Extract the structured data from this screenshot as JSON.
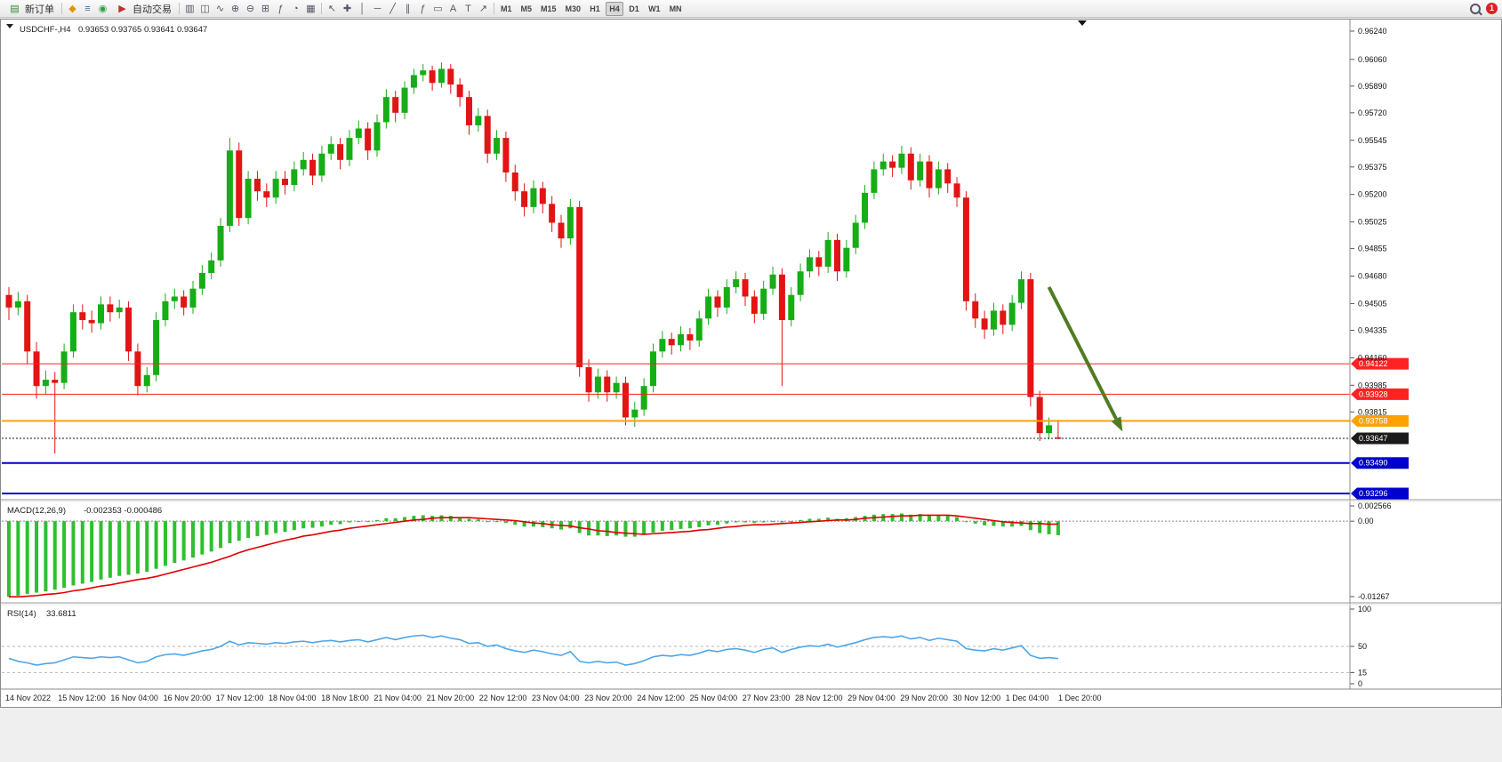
{
  "toolbar": {
    "new_order_label": "新订单",
    "autotrade_label": "自动交易",
    "left_icons": [
      {
        "name": "alert-icon",
        "glyph": "◆",
        "color": "#d99a00"
      },
      {
        "name": "news-icon",
        "glyph": "≡",
        "color": "#3a6ea8"
      },
      {
        "name": "community-icon",
        "glyph": "◉",
        "color": "#2f9e44"
      }
    ],
    "chart_icons": [
      {
        "name": "bar-chart-icon",
        "glyph": "▥"
      },
      {
        "name": "candlestick-icon",
        "glyph": "◫"
      },
      {
        "name": "line-chart-icon",
        "glyph": "∿"
      },
      {
        "name": "zoom-in-icon",
        "glyph": "⊕"
      },
      {
        "name": "zoom-out-icon",
        "glyph": "⊖"
      },
      {
        "name": "tile-windows-icon",
        "glyph": "⊞"
      },
      {
        "name": "indicators-icon",
        "glyph": "ƒ"
      },
      {
        "name": "timeframe-menu-icon",
        "glyph": "◔"
      },
      {
        "name": "templates-icon",
        "glyph": "▦"
      }
    ],
    "tool_icons": [
      {
        "name": "cursor-icon",
        "glyph": "↖"
      },
      {
        "name": "crosshair-icon",
        "glyph": "✚"
      },
      {
        "name": "vertical-line-icon",
        "glyph": "│"
      },
      {
        "name": "horizontal-line-icon",
        "glyph": "─"
      },
      {
        "name": "trendline-icon",
        "glyph": "╱"
      },
      {
        "name": "channel-icon",
        "glyph": "∥"
      },
      {
        "name": "fibonacci-icon",
        "glyph": "ƒ"
      },
      {
        "name": "shapes-icon",
        "glyph": "▭"
      },
      {
        "name": "text-icon",
        "glyph": "A"
      },
      {
        "name": "label-icon",
        "glyph": "T"
      },
      {
        "name": "arrows-icon",
        "glyph": "↗"
      }
    ],
    "timeframes": [
      "M1",
      "M5",
      "M15",
      "M30",
      "H1",
      "H4",
      "D1",
      "W1",
      "MN"
    ],
    "active_timeframe": "H4",
    "notification_badge": "1"
  },
  "chart": {
    "title": "USDCHF-,H4",
    "ohlc_text": "0.93653 0.93765 0.93641 0.93647",
    "colors": {
      "up": "#16ad16",
      "down": "#e21414",
      "macd_bar": "#2fbf2f",
      "macd_signal": "#e00000",
      "rsi_line": "#4da6e8",
      "axis_line": "#808080"
    },
    "price_ticks": [
      "0.96240",
      "0.96060",
      "0.95890",
      "0.95720",
      "0.95545",
      "0.95375",
      "0.95200",
      "0.95025",
      "0.94855",
      "0.94680",
      "0.94505",
      "0.94335",
      "0.94160",
      "0.93985",
      "0.93815"
    ],
    "time_labels": [
      "14 Nov 2022",
      "15 Nov 12:00",
      "16 Nov 04:00",
      "16 Nov 20:00",
      "17 Nov 12:00",
      "18 Nov 04:00",
      "18 Nov 18:00",
      "21 Nov 04:00",
      "21 Nov 20:00",
      "22 Nov 12:00",
      "23 Nov 04:00",
      "23 Nov 20:00",
      "24 Nov 12:00",
      "25 Nov 04:00",
      "27 Nov 23:00",
      "28 Nov 12:00",
      "29 Nov 04:00",
      "29 Nov 20:00",
      "30 Nov 12:00",
      "1 Dec 04:00",
      "1 Dec 20:00"
    ]
  },
  "macd_panel": {
    "title": "MACD(12,26,9)",
    "values_text": "-0.002353 -0.000486",
    "axis_labels": [
      {
        "text": "0.002566",
        "value": 0.002566
      },
      {
        "text": "0.00",
        "value": 0
      },
      {
        "text": "-0.01267",
        "value": -0.01267
      }
    ]
  },
  "rsi_panel": {
    "title": "RSI(14)",
    "value_text": "33.6811",
    "axis_labels": [
      {
        "text": "100",
        "value": 100
      },
      {
        "text": "50",
        "value": 50
      },
      {
        "text": "15",
        "value": 15
      },
      {
        "text": "0",
        "value": 0
      }
    ],
    "level_lines": [
      50,
      15
    ]
  },
  "chart_data": {
    "type": "candlestick",
    "symbol": "USDCHF-",
    "timeframe": "H4",
    "last_ohlc": {
      "open": 0.93653,
      "high": 0.93765,
      "low": 0.93641,
      "close": 0.93647
    },
    "y_axis": {
      "max": 0.9624,
      "min": 0.93296
    },
    "candles": [
      [
        0.9456,
        0.9461,
        0.944,
        0.9448
      ],
      [
        0.9448,
        0.9458,
        0.9443,
        0.9452
      ],
      [
        0.9452,
        0.9456,
        0.9412,
        0.942
      ],
      [
        0.942,
        0.9426,
        0.939,
        0.9398
      ],
      [
        0.9398,
        0.9408,
        0.9393,
        0.9402
      ],
      [
        0.9402,
        0.9407,
        0.9355,
        0.94
      ],
      [
        0.94,
        0.9425,
        0.9396,
        0.942
      ],
      [
        0.942,
        0.945,
        0.9416,
        0.9445
      ],
      [
        0.9445,
        0.945,
        0.9434,
        0.944
      ],
      [
        0.944,
        0.9446,
        0.9432,
        0.9438
      ],
      [
        0.9438,
        0.9455,
        0.9434,
        0.945
      ],
      [
        0.945,
        0.9455,
        0.9439,
        0.9445
      ],
      [
        0.9445,
        0.9453,
        0.9441,
        0.9448
      ],
      [
        0.9448,
        0.9452,
        0.9414,
        0.942
      ],
      [
        0.942,
        0.9425,
        0.9392,
        0.9398
      ],
      [
        0.9398,
        0.941,
        0.9394,
        0.9405
      ],
      [
        0.9405,
        0.9445,
        0.9401,
        0.944
      ],
      [
        0.944,
        0.9457,
        0.9436,
        0.9452
      ],
      [
        0.9452,
        0.946,
        0.9447,
        0.9455
      ],
      [
        0.9455,
        0.9459,
        0.9443,
        0.9448
      ],
      [
        0.9448,
        0.9465,
        0.9444,
        0.946
      ],
      [
        0.946,
        0.9475,
        0.9456,
        0.947
      ],
      [
        0.947,
        0.9483,
        0.9466,
        0.9478
      ],
      [
        0.9478,
        0.9505,
        0.9474,
        0.95
      ],
      [
        0.95,
        0.9556,
        0.9496,
        0.9548
      ],
      [
        0.9548,
        0.9553,
        0.95,
        0.9505
      ],
      [
        0.9505,
        0.9535,
        0.9501,
        0.953
      ],
      [
        0.953,
        0.9535,
        0.9516,
        0.9522
      ],
      [
        0.9522,
        0.9527,
        0.9512,
        0.9518
      ],
      [
        0.9518,
        0.9535,
        0.9514,
        0.953
      ],
      [
        0.953,
        0.9535,
        0.952,
        0.9526
      ],
      [
        0.9526,
        0.9541,
        0.9522,
        0.9536
      ],
      [
        0.9536,
        0.9547,
        0.9532,
        0.9542
      ],
      [
        0.9542,
        0.9546,
        0.9526,
        0.9532
      ],
      [
        0.9532,
        0.9551,
        0.9528,
        0.9546
      ],
      [
        0.9546,
        0.9557,
        0.9542,
        0.9552
      ],
      [
        0.9552,
        0.9556,
        0.9536,
        0.9542
      ],
      [
        0.9542,
        0.9561,
        0.9538,
        0.9556
      ],
      [
        0.9556,
        0.9567,
        0.9552,
        0.9562
      ],
      [
        0.9562,
        0.9566,
        0.9542,
        0.9548
      ],
      [
        0.9548,
        0.9571,
        0.9544,
        0.9566
      ],
      [
        0.9566,
        0.9587,
        0.9562,
        0.9582
      ],
      [
        0.9582,
        0.9586,
        0.9566,
        0.9572
      ],
      [
        0.9572,
        0.9592,
        0.9568,
        0.9588
      ],
      [
        0.9588,
        0.96,
        0.9584,
        0.9596
      ],
      [
        0.9596,
        0.9603,
        0.9592,
        0.9599
      ],
      [
        0.9599,
        0.9602,
        0.9586,
        0.9591
      ],
      [
        0.9591,
        0.9604,
        0.9588,
        0.96
      ],
      [
        0.96,
        0.9603,
        0.9584,
        0.959
      ],
      [
        0.959,
        0.9594,
        0.9576,
        0.9582
      ],
      [
        0.9582,
        0.9586,
        0.9558,
        0.9564
      ],
      [
        0.9564,
        0.9575,
        0.956,
        0.957
      ],
      [
        0.957,
        0.9574,
        0.954,
        0.9546
      ],
      [
        0.9546,
        0.9561,
        0.9542,
        0.9556
      ],
      [
        0.9556,
        0.956,
        0.9528,
        0.9534
      ],
      [
        0.9534,
        0.9539,
        0.9516,
        0.9522
      ],
      [
        0.9522,
        0.9527,
        0.9506,
        0.9512
      ],
      [
        0.9512,
        0.9529,
        0.9508,
        0.9524
      ],
      [
        0.9524,
        0.9528,
        0.9508,
        0.9514
      ],
      [
        0.9514,
        0.9519,
        0.9496,
        0.9502
      ],
      [
        0.9502,
        0.9507,
        0.9486,
        0.9492
      ],
      [
        0.9492,
        0.9517,
        0.9488,
        0.9512
      ],
      [
        0.9512,
        0.9516,
        0.9404,
        0.941
      ],
      [
        0.941,
        0.9415,
        0.9388,
        0.9394
      ],
      [
        0.9394,
        0.9409,
        0.939,
        0.9404
      ],
      [
        0.9404,
        0.9408,
        0.9388,
        0.9394
      ],
      [
        0.9394,
        0.9404,
        0.939,
        0.94
      ],
      [
        0.94,
        0.9404,
        0.9373,
        0.9378
      ],
      [
        0.9378,
        0.9388,
        0.9372,
        0.9383
      ],
      [
        0.9383,
        0.9403,
        0.9379,
        0.9398
      ],
      [
        0.9398,
        0.9425,
        0.9394,
        0.942
      ],
      [
        0.942,
        0.9433,
        0.9416,
        0.9428
      ],
      [
        0.9428,
        0.9432,
        0.9418,
        0.9424
      ],
      [
        0.9424,
        0.9436,
        0.942,
        0.9431
      ],
      [
        0.9431,
        0.9435,
        0.9421,
        0.9427
      ],
      [
        0.9427,
        0.9446,
        0.9423,
        0.9441
      ],
      [
        0.9441,
        0.946,
        0.9437,
        0.9455
      ],
      [
        0.9455,
        0.9459,
        0.9442,
        0.9448
      ],
      [
        0.9448,
        0.9466,
        0.9444,
        0.9461
      ],
      [
        0.9461,
        0.9471,
        0.9457,
        0.9466
      ],
      [
        0.9466,
        0.947,
        0.9449,
        0.9455
      ],
      [
        0.9455,
        0.9459,
        0.9438,
        0.9444
      ],
      [
        0.9444,
        0.9465,
        0.944,
        0.946
      ],
      [
        0.946,
        0.9474,
        0.9456,
        0.9469
      ],
      [
        0.9469,
        0.9473,
        0.9398,
        0.944
      ],
      [
        0.944,
        0.9461,
        0.9436,
        0.9456
      ],
      [
        0.9456,
        0.9476,
        0.9452,
        0.9471
      ],
      [
        0.9471,
        0.9485,
        0.9467,
        0.948
      ],
      [
        0.948,
        0.9484,
        0.9468,
        0.9474
      ],
      [
        0.9474,
        0.9496,
        0.947,
        0.9491
      ],
      [
        0.9491,
        0.9495,
        0.9465,
        0.9471
      ],
      [
        0.9471,
        0.9491,
        0.9467,
        0.9486
      ],
      [
        0.9486,
        0.9507,
        0.9482,
        0.9502
      ],
      [
        0.9502,
        0.9526,
        0.9498,
        0.9521
      ],
      [
        0.9521,
        0.9541,
        0.9517,
        0.9536
      ],
      [
        0.9536,
        0.9546,
        0.9532,
        0.9541
      ],
      [
        0.9541,
        0.9545,
        0.9531,
        0.9537
      ],
      [
        0.9537,
        0.9551,
        0.9533,
        0.9546
      ],
      [
        0.9546,
        0.955,
        0.9523,
        0.9529
      ],
      [
        0.9529,
        0.9546,
        0.9525,
        0.9541
      ],
      [
        0.9541,
        0.9545,
        0.9518,
        0.9524
      ],
      [
        0.9524,
        0.9541,
        0.952,
        0.9536
      ],
      [
        0.9536,
        0.954,
        0.9521,
        0.9527
      ],
      [
        0.9527,
        0.9531,
        0.9512,
        0.9518
      ],
      [
        0.9518,
        0.9522,
        0.9446,
        0.9452
      ],
      [
        0.9452,
        0.9457,
        0.9435,
        0.9441
      ],
      [
        0.9441,
        0.9446,
        0.9428,
        0.9434
      ],
      [
        0.9434,
        0.9451,
        0.943,
        0.9446
      ],
      [
        0.9446,
        0.945,
        0.9431,
        0.9437
      ],
      [
        0.9437,
        0.9456,
        0.9433,
        0.9451
      ],
      [
        0.9451,
        0.9471,
        0.9447,
        0.9466
      ],
      [
        0.9466,
        0.947,
        0.9385,
        0.9391
      ],
      [
        0.9391,
        0.9395,
        0.9363,
        0.9368
      ],
      [
        0.9368,
        0.9378,
        0.9364,
        0.9373
      ],
      [
        0.93653,
        0.93765,
        0.93641,
        0.93647
      ]
    ],
    "levels": [
      {
        "price": 0.94122,
        "label": "0.94122",
        "color": "#ff2222",
        "width": 1,
        "style": "solid"
      },
      {
        "price": 0.93928,
        "label": "0.93928",
        "color": "#ff2222",
        "width": 1,
        "style": "solid"
      },
      {
        "price": 0.93758,
        "label": "0.93758",
        "color": "#ffa200",
        "width": 2,
        "style": "solid"
      },
      {
        "price": 0.93647,
        "label": "0.93647",
        "color": "#1a1a1a",
        "width": 1,
        "style": "dotted"
      },
      {
        "price": 0.9349,
        "label": "0.93490",
        "color": "#0000cc",
        "width": 2,
        "style": "solid"
      },
      {
        "price": 0.93296,
        "label": "0.93296",
        "color": "#0000cc",
        "width": 2,
        "style": "solid"
      }
    ],
    "annotation_arrow": {
      "from_bar": 113,
      "from_price": 0.9461,
      "to_bar": 121,
      "to_price": 0.9369,
      "color": "#4f7b22"
    },
    "macd": [
      -0.0127,
      -0.0125,
      -0.0122,
      -0.012,
      -0.0118,
      -0.0115,
      -0.0112,
      -0.0108,
      -0.0105,
      -0.0102,
      -0.0098,
      -0.0095,
      -0.0092,
      -0.009,
      -0.0088,
      -0.0085,
      -0.008,
      -0.0075,
      -0.007,
      -0.0066,
      -0.0061,
      -0.0056,
      -0.0051,
      -0.0045,
      -0.0037,
      -0.0033,
      -0.0028,
      -0.0025,
      -0.0023,
      -0.002,
      -0.0018,
      -0.0015,
      -0.0012,
      -0.0011,
      -0.0009,
      -0.0006,
      -0.0005,
      -0.0002,
      0.0,
      0.0,
      0.0002,
      0.0005,
      0.0005,
      0.0007,
      0.0009,
      0.001,
      0.0009,
      0.001,
      0.0009,
      0.0007,
      0.0004,
      0.0003,
      0.0,
      0.0,
      -0.0003,
      -0.0006,
      -0.0009,
      -0.0009,
      -0.001,
      -0.0012,
      -0.0014,
      -0.0012,
      -0.002,
      -0.0024,
      -0.0024,
      -0.0025,
      -0.0024,
      -0.0026,
      -0.0026,
      -0.0023,
      -0.0019,
      -0.0016,
      -0.0015,
      -0.0013,
      -0.0012,
      -0.001,
      -0.0007,
      -0.0006,
      -0.0004,
      -0.0002,
      -0.0002,
      -0.0003,
      -0.0002,
      0.0,
      -0.0002,
      0.0,
      0.0002,
      0.0004,
      0.0004,
      0.0006,
      0.0004,
      0.0005,
      0.0007,
      0.0009,
      0.0011,
      0.0012,
      0.0012,
      0.0013,
      0.0011,
      0.0012,
      0.001,
      0.001,
      0.0009,
      0.0007,
      0.0,
      -0.0004,
      -0.0007,
      -0.0008,
      -0.0009,
      -0.0009,
      -0.0008,
      -0.0015,
      -0.002,
      -0.0022,
      -0.002353
    ],
    "macd_signal": [
      -0.0127,
      -0.0127,
      -0.0126,
      -0.0125,
      -0.0123,
      -0.0122,
      -0.012,
      -0.0117,
      -0.0115,
      -0.0112,
      -0.0109,
      -0.0107,
      -0.0104,
      -0.0101,
      -0.0098,
      -0.0096,
      -0.0093,
      -0.0089,
      -0.0085,
      -0.0081,
      -0.0077,
      -0.0073,
      -0.0069,
      -0.0064,
      -0.0059,
      -0.0053,
      -0.0048,
      -0.0044,
      -0.004,
      -0.0036,
      -0.0032,
      -0.0029,
      -0.0025,
      -0.0023,
      -0.002,
      -0.0017,
      -0.0015,
      -0.0012,
      -0.001,
      -0.0008,
      -0.0006,
      -0.0004,
      -0.0002,
      0.0,
      0.0002,
      0.0003,
      0.0005,
      0.0006,
      0.0006,
      0.0006,
      0.0006,
      0.0005,
      0.0004,
      0.0003,
      0.0002,
      0.0001,
      -0.0001,
      -0.0003,
      -0.0004,
      -0.0006,
      -0.0007,
      -0.0008,
      -0.0011,
      -0.0013,
      -0.0016,
      -0.0017,
      -0.0019,
      -0.002,
      -0.0021,
      -0.0022,
      -0.0021,
      -0.002,
      -0.0019,
      -0.0018,
      -0.0017,
      -0.0015,
      -0.0014,
      -0.0012,
      -0.001,
      -0.0009,
      -0.0007,
      -0.0006,
      -0.0006,
      -0.0005,
      -0.0004,
      -0.0003,
      -0.0002,
      -0.0001,
      0.0,
      0.0001,
      0.0002,
      0.0002,
      0.0003,
      0.0005,
      0.0006,
      0.0007,
      0.0008,
      0.0009,
      0.0009,
      0.001,
      0.001,
      0.001,
      0.001,
      0.0009,
      0.0007,
      0.0005,
      0.0003,
      0.0001,
      -0.0001,
      -0.0002,
      -0.0003,
      -0.0004,
      -0.0004,
      -0.0005,
      -0.000486
    ],
    "rsi": [
      34,
      30,
      28,
      25,
      27,
      28,
      32,
      36,
      35,
      34,
      36,
      35,
      36,
      32,
      28,
      30,
      36,
      39,
      40,
      38,
      41,
      44,
      46,
      50,
      57,
      52,
      55,
      54,
      53,
      55,
      54,
      56,
      57,
      55,
      57,
      58,
      56,
      58,
      59,
      56,
      59,
      62,
      59,
      62,
      64,
      65,
      62,
      64,
      61,
      59,
      54,
      55,
      50,
      52,
      47,
      44,
      42,
      45,
      43,
      40,
      38,
      43,
      30,
      28,
      30,
      28,
      29,
      25,
      27,
      31,
      36,
      38,
      37,
      39,
      38,
      41,
      45,
      43,
      46,
      47,
      45,
      42,
      46,
      48,
      42,
      46,
      49,
      51,
      50,
      53,
      49,
      52,
      55,
      59,
      62,
      63,
      62,
      64,
      60,
      62,
      58,
      61,
      59,
      57,
      47,
      45,
      44,
      47,
      45,
      48,
      51,
      38,
      34,
      35,
      33.6811
    ]
  }
}
